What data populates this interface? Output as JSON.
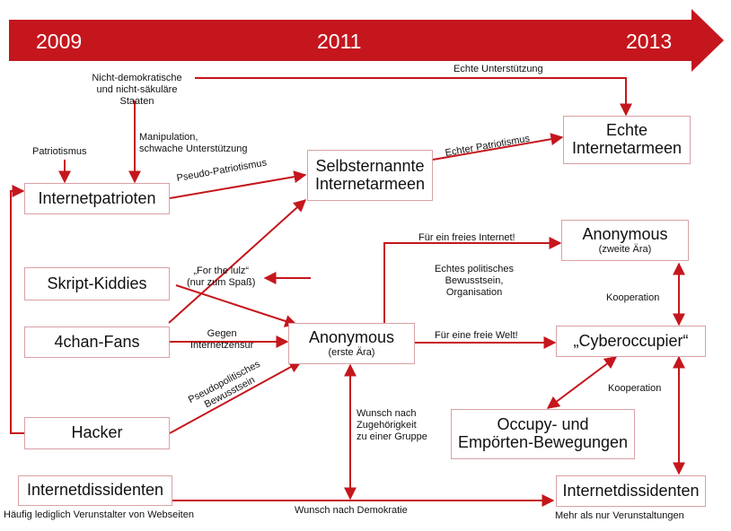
{
  "timeline": {
    "years": [
      "2009",
      "2011",
      "2013"
    ],
    "color": "#c5161d"
  },
  "arrow_color": "#c5161d",
  "box_border_color": "#d9a0a6",
  "nodes": {
    "nicht_demokratische": "Nicht-demokratische\nund nicht-säkuläre Staaten",
    "patriotismus": "Patriotismus",
    "internetpatrioten": "Internetpatrioten",
    "skript_kiddies": "Skript-Kiddies",
    "chan_fans": "4chan-Fans",
    "hacker": "Hacker",
    "internetdissidenten_left": "Internetdissidenten",
    "selbsternannte": "Selbsternannte\nInternetarmeen",
    "anonymous_erste": "Anonymous",
    "anonymous_erste_sub": "(erste Ära)",
    "echte": "Echte\nInternetarmeen",
    "anonymous_zweite": "Anonymous",
    "anonymous_zweite_sub": "(zweite Ära)",
    "cyberoccupier": "„Cyberoccupier“",
    "occupy": "Occupy- und\nEmpörten-Bewegungen",
    "internetdissidenten_right": "Internetdissidenten"
  },
  "labels": {
    "echte_unterstuetzung": "Echte Unterstützung",
    "manipulation": "Manipulation,\nschwache Unterstützung",
    "pseudo_patriotismus": "Pseudo-Patriotismus",
    "echter_patriotismus": "Echter Patriotismus",
    "for_the_lulz": "„For the lulz“\n(nur zum Spaß)",
    "gegen_zensur": "Gegen\nInternetzensur",
    "pseudopolitisches": "Pseudopolitisches\nBewusstsein",
    "fuer_freies_internet": "Für ein freies Internet!",
    "echtes_politisches": "Echtes politisches\nBewusstsein,\nOrganisation",
    "fuer_freie_welt": "Für eine freie Welt!",
    "kooperation_1": "Kooperation",
    "kooperation_2": "Kooperation",
    "wunsch_zugehoerigkeit": "Wunsch nach\nZugehörigkeit\nzu einer Gruppe",
    "wunsch_demokratie": "Wunsch nach Demokratie",
    "haeufig": "Häufig lediglich Verunstalter von Webseiten",
    "mehr_als": "Mehr als nur Verunstaltungen"
  }
}
